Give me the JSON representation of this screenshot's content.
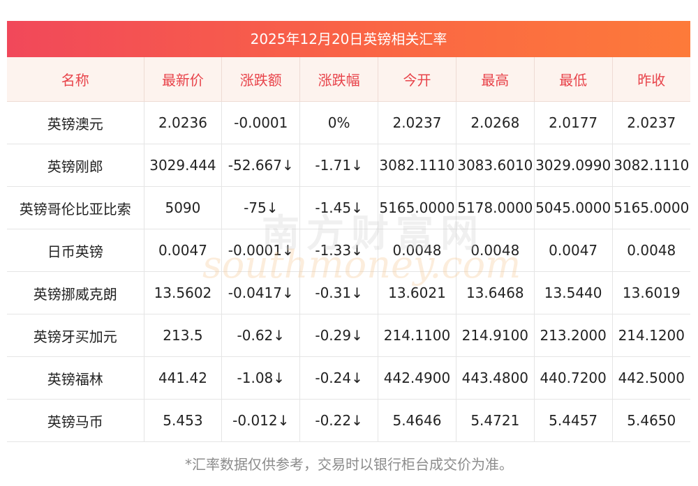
{
  "title": "2025年12月20日英镑相关汇率",
  "columns": [
    "名称",
    "最新价",
    "涨跌额",
    "涨跌幅",
    "今开",
    "最高",
    "最低",
    "昨收"
  ],
  "rows": [
    {
      "name": "英镑澳元",
      "latest": "2.0236",
      "change": "-0.0001",
      "pct": "0%",
      "open": "2.0237",
      "high": "2.0268",
      "low": "2.0177",
      "prev": "2.0237",
      "direction": "flat"
    },
    {
      "name": "英镑刚郎",
      "latest": "3029.444",
      "change": "-52.667↓",
      "pct": "-1.71↓",
      "open": "3082.1110",
      "high": "3083.6010",
      "low": "3029.0990",
      "prev": "3082.1110",
      "direction": "down"
    },
    {
      "name": "英镑哥伦比亚比索",
      "latest": "5090",
      "change": "-75↓",
      "pct": "-1.45↓",
      "open": "5165.0000",
      "high": "5178.0000",
      "low": "5045.0000",
      "prev": "5165.0000",
      "direction": "down"
    },
    {
      "name": "日币英镑",
      "latest": "0.0047",
      "change": "-0.0001↓",
      "pct": "-1.33↓",
      "open": "0.0048",
      "high": "0.0048",
      "low": "0.0047",
      "prev": "0.0048",
      "direction": "down"
    },
    {
      "name": "英镑挪威克朗",
      "latest": "13.5602",
      "change": "-0.0417↓",
      "pct": "-0.31↓",
      "open": "13.6021",
      "high": "13.6468",
      "low": "13.5440",
      "prev": "13.6019",
      "direction": "down"
    },
    {
      "name": "英镑牙买加元",
      "latest": "213.5",
      "change": "-0.62↓",
      "pct": "-0.29↓",
      "open": "214.1100",
      "high": "214.9100",
      "low": "213.2000",
      "prev": "214.1200",
      "direction": "down"
    },
    {
      "name": "英镑福林",
      "latest": "441.42",
      "change": "-1.08↓",
      "pct": "-0.24↓",
      "open": "442.4900",
      "high": "443.4800",
      "low": "440.7200",
      "prev": "442.5000",
      "direction": "down"
    },
    {
      "name": "英镑马币",
      "latest": "5.453",
      "change": "-0.012↓",
      "pct": "-0.22↓",
      "open": "5.4646",
      "high": "5.4721",
      "low": "5.4457",
      "prev": "5.4650",
      "direction": "down"
    }
  ],
  "footnote": "*汇率数据仅供参考，交易时以银行柜台成交价为准。",
  "watermark": {
    "cn": "南方财富网",
    "en": "southmoney.com"
  },
  "colors": {
    "header_gradient_start": "#f1485a",
    "header_gradient_end": "#fd7a3a",
    "column_header_text": "#e8434a",
    "column_header_bg": "#fdf3ee",
    "down": "#1f8a1f"
  }
}
